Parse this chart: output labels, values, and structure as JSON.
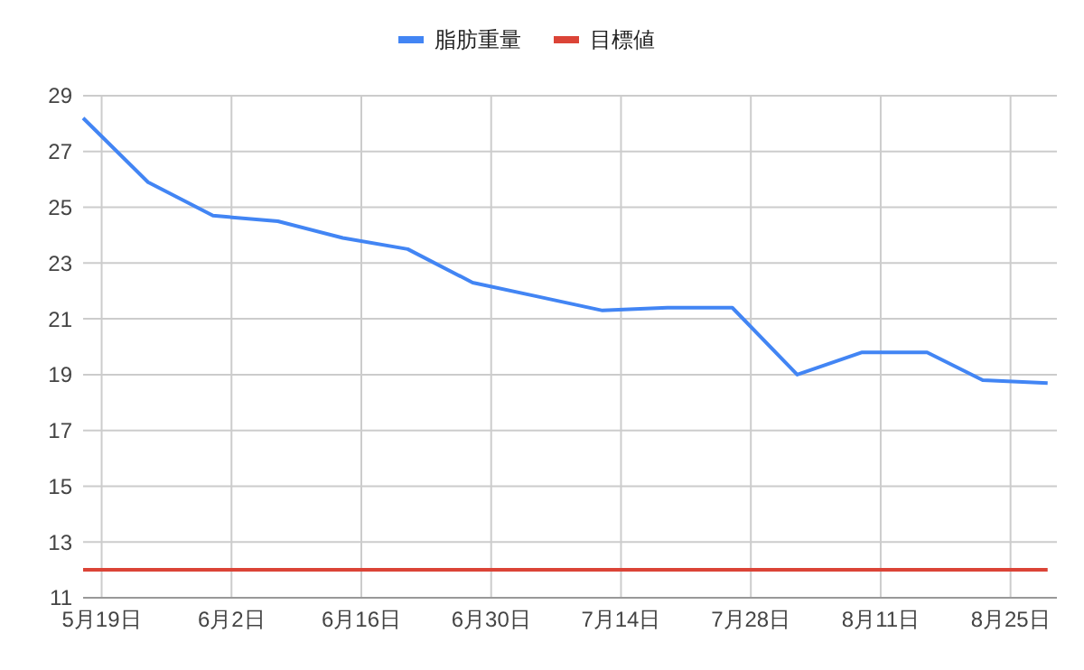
{
  "chart_data": {
    "type": "line",
    "x": [
      "--05-17",
      "--05-24",
      "--05-31",
      "--06-07",
      "--06-14",
      "--06-21",
      "--06-28",
      "--07-05",
      "--07-12",
      "--07-19",
      "--07-26",
      "--08-02",
      "--08-09",
      "--08-16",
      "--08-22",
      "--08-29"
    ],
    "series": [
      {
        "name": "脂肪重量",
        "color": "#4285f4",
        "values": [
          28.2,
          25.9,
          24.7,
          24.5,
          23.9,
          23.5,
          22.3,
          21.8,
          21.3,
          21.4,
          21.4,
          19.0,
          19.8,
          19.8,
          18.8,
          18.7
        ]
      },
      {
        "name": "目標値",
        "color": "#db4437",
        "values": [
          12,
          12,
          12,
          12,
          12,
          12,
          12,
          12,
          12,
          12,
          12,
          12,
          12,
          12,
          12,
          12
        ]
      }
    ],
    "xlim": [
      "--05-17",
      "--08-30"
    ],
    "xticks": [
      {
        "value": "--05-19",
        "label": "5月19日"
      },
      {
        "value": "--06-02",
        "label": "6月2日"
      },
      {
        "value": "--06-16",
        "label": "6月16日"
      },
      {
        "value": "--06-30",
        "label": "6月30日"
      },
      {
        "value": "--07-14",
        "label": "7月14日"
      },
      {
        "value": "--07-28",
        "label": "7月28日"
      },
      {
        "value": "--08-11",
        "label": "8月11日"
      },
      {
        "value": "--08-25",
        "label": "8月25日"
      }
    ],
    "ylim": [
      11,
      29
    ],
    "yticks": [
      11,
      13,
      15,
      17,
      19,
      21,
      23,
      25,
      27,
      29
    ],
    "grid": true,
    "legend": "top"
  }
}
